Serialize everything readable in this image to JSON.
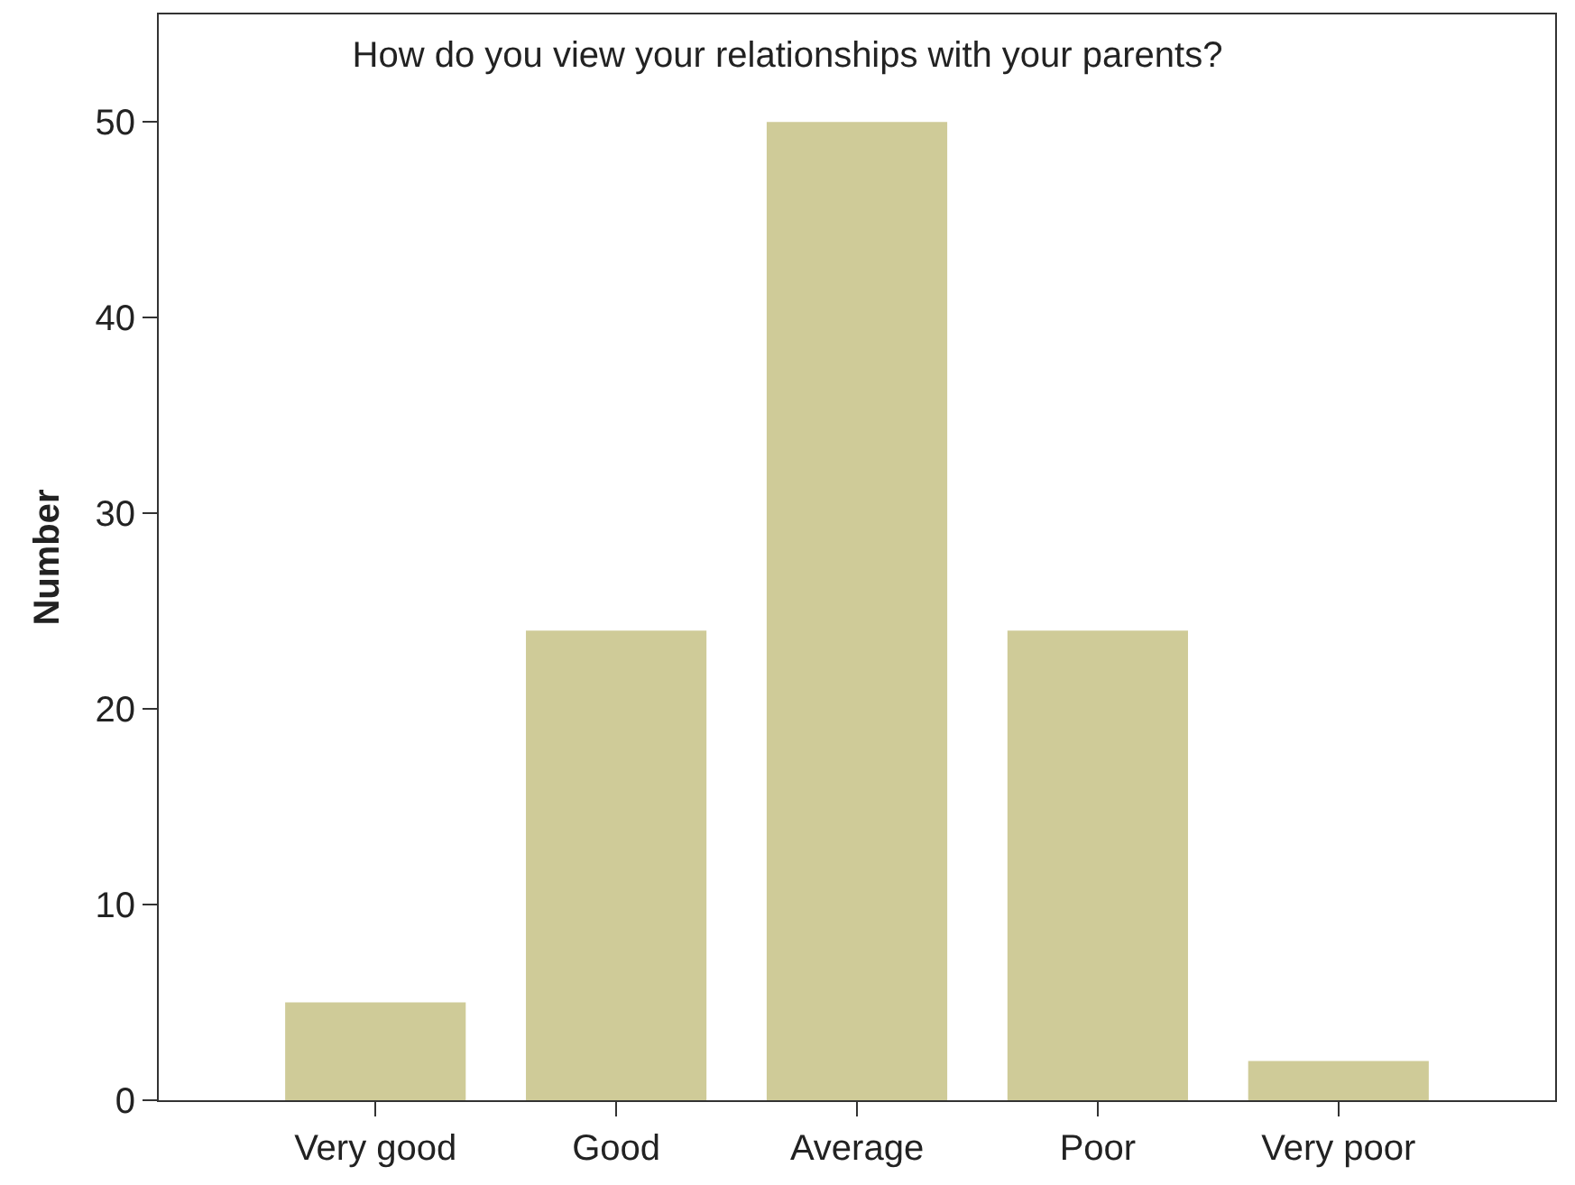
{
  "chart_data": {
    "type": "bar",
    "title": "How do you view your relationships with your parents?",
    "ylabel": "Number",
    "categories": [
      "Very good",
      "Good",
      "Average",
      "Poor",
      "Very poor"
    ],
    "values": [
      5,
      24,
      50,
      24,
      2
    ],
    "color": "#cfcb98",
    "ylim": [
      0,
      55.5
    ],
    "yticks": [
      0,
      10,
      20,
      30,
      40,
      50
    ],
    "grid": false,
    "legend": false
  }
}
